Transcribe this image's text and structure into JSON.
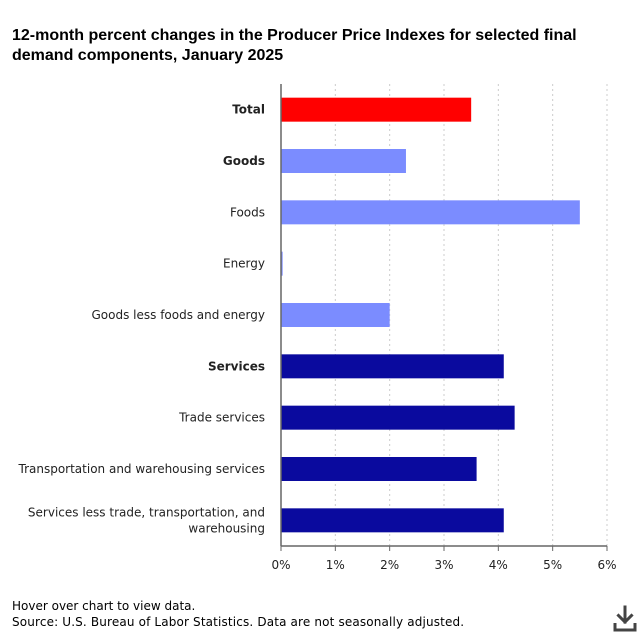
{
  "title": "12-month percent changes in the Producer Price Indexes for selected final demand components, January 2025",
  "footer": {
    "hover_note": "Hover over chart to view data.",
    "source": "Source: U.S. Bureau of Labor Statistics. Data are not seasonally adjusted."
  },
  "download_icon": "download-icon",
  "colors": {
    "total": "#ff0000",
    "goods": "#7b8cff",
    "services": "#0a0a9e",
    "axis": "#666666",
    "grid": "#cccccc"
  },
  "chart_data": {
    "type": "bar",
    "orientation": "horizontal",
    "title": "12-month percent changes in the Producer Price Indexes for selected final demand components, January 2025",
    "xlabel": "",
    "ylabel": "",
    "xlim": [
      0,
      6
    ],
    "x_ticks": [
      "0%",
      "1%",
      "2%",
      "3%",
      "4%",
      "5%",
      "6%"
    ],
    "grid": "vertical dashed",
    "legend": "none",
    "categories": [
      "Total",
      "Goods",
      "Foods",
      "Energy",
      "Goods less foods and energy",
      "Services",
      "Trade services",
      "Transportation and warehousing services",
      "Services less trade, transportation, and warehousing"
    ],
    "bold_categories": [
      "Total",
      "Goods",
      "Services"
    ],
    "values": [
      3.5,
      2.3,
      5.5,
      0.03,
      2.0,
      4.1,
      4.3,
      3.6,
      4.1
    ],
    "bar_colors": [
      "total",
      "goods",
      "goods",
      "goods",
      "goods",
      "services",
      "services",
      "services",
      "services"
    ]
  }
}
